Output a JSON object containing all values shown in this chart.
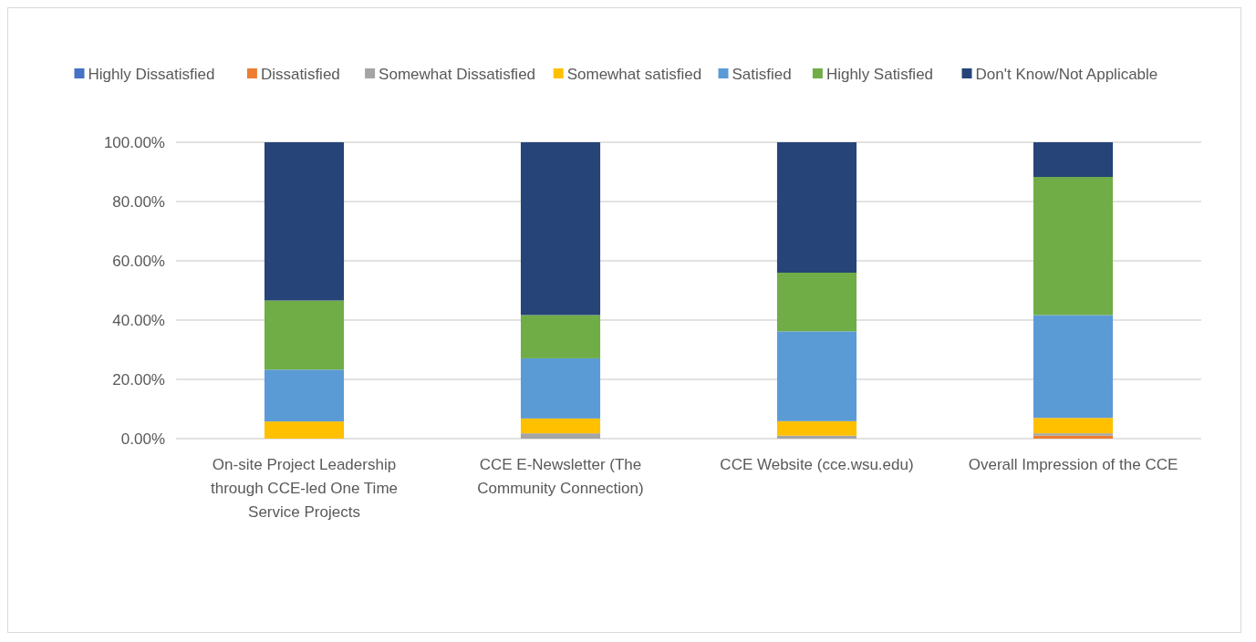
{
  "chart_data": {
    "type": "bar",
    "stacked": true,
    "categories": [
      "On-site Project Leadership through CCE-led One Time Service Projects",
      "CCE E-Newsletter (The Community Connection)",
      "CCE Website (cce.wsu.edu)",
      "Overall Impression of the CCE"
    ],
    "series": [
      {
        "name": "Highly Dissatisfied",
        "color": "#4472c4",
        "values": [
          0,
          0,
          0,
          0
        ]
      },
      {
        "name": "Dissatisfied",
        "color": "#ed7d31",
        "values": [
          0,
          0,
          0,
          1.0
        ]
      },
      {
        "name": "Somewhat Dissatisfied",
        "color": "#a5a5a5",
        "values": [
          0,
          1.8,
          1.0,
          0.8
        ]
      },
      {
        "name": "Somewhat satisfied",
        "color": "#ffc000",
        "values": [
          5.8,
          5.0,
          4.9,
          5.2
        ]
      },
      {
        "name": "Satisfied",
        "color": "#5b9bd5",
        "values": [
          17.5,
          20.3,
          30.3,
          34.7
        ]
      },
      {
        "name": "Highly Satisfied",
        "color": "#70ad47",
        "values": [
          23.3,
          14.6,
          19.8,
          46.6
        ]
      },
      {
        "name": "Don't Know/Not Applicable",
        "color": "#264478",
        "values": [
          53.4,
          58.3,
          44.0,
          11.7
        ]
      }
    ],
    "ylim": [
      0,
      100
    ],
    "yticks": [
      {
        "value": 0,
        "label": "0.00%"
      },
      {
        "value": 20,
        "label": "20.00%"
      },
      {
        "value": 40,
        "label": "40.00%"
      },
      {
        "value": 60,
        "label": "60.00%"
      },
      {
        "value": 80,
        "label": "80.00%"
      },
      {
        "value": 100,
        "label": "100.00%"
      }
    ],
    "grid": "y",
    "legend": "top"
  }
}
